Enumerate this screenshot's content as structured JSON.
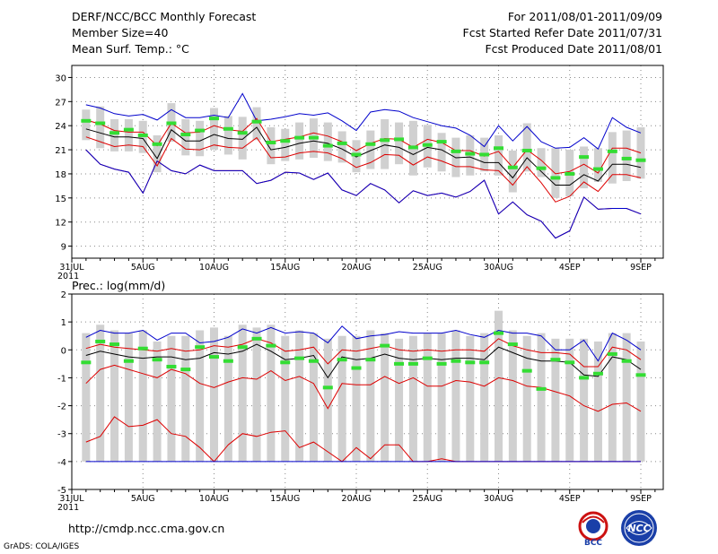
{
  "header": {
    "title": "DERF/NCC/BCC Monthly Forecast",
    "member_size": "Member Size=40",
    "variable": "Mean Surf. Temp.: °C",
    "period": "For 2011/08/01-2011/09/09",
    "start_date": "Fcst Started Refer Date 2011/07/31",
    "produced_date": "Fcst Produced Date 2011/08/01"
  },
  "footer": {
    "url": "http://cmdp.ncc.cma.gov.cn",
    "grads": "GrADS: COLA/IGES",
    "logo_bcc_text": "BCC",
    "logo_ncc_text": "NCC"
  },
  "colors": {
    "box": "#d0d0d0",
    "median": "#33dd33",
    "mean": "#000000",
    "std": "#dd0000",
    "extreme": "#0000cc",
    "grid": "#888888"
  },
  "chart_data": [
    {
      "type": "boxplot-line",
      "title": "Mean Surf. Temp.: °C",
      "x_labels": [
        "31JUL",
        "5AUG",
        "10AUG",
        "15AUG",
        "20AUG",
        "25AUG",
        "30AUG",
        "4SEP",
        "9SEP"
      ],
      "x_label_days": [
        0,
        5,
        10,
        15,
        20,
        25,
        30,
        35,
        40
      ],
      "year_label": "2011",
      "ylim": [
        7.5,
        31.5
      ],
      "yticks": [
        9,
        12,
        15,
        18,
        21,
        24,
        27,
        30
      ],
      "x": [
        1,
        2,
        3,
        4,
        5,
        6,
        7,
        8,
        9,
        10,
        11,
        12,
        13,
        14,
        15,
        16,
        17,
        18,
        19,
        20,
        21,
        22,
        23,
        24,
        25,
        26,
        27,
        28,
        29,
        30,
        31,
        32,
        33,
        34,
        35,
        36,
        37,
        38,
        39,
        40
      ],
      "box_low": [
        22.2,
        21.2,
        20.8,
        20.8,
        20.6,
        18.2,
        22.0,
        20.3,
        20.2,
        21.0,
        20.4,
        19.8,
        22.2,
        19.2,
        19.6,
        19.8,
        20.0,
        19.6,
        19.4,
        18.2,
        18.6,
        18.6,
        19.2,
        17.8,
        18.8,
        18.3,
        17.6,
        17.8,
        18.3,
        17.8,
        15.7,
        18.3,
        17.6,
        15.0,
        15.2,
        16.2,
        17.0,
        16.8,
        17.1,
        17.4
      ],
      "box_high": [
        26.0,
        26.4,
        24.8,
        24.8,
        24.6,
        22.8,
        26.8,
        24.8,
        24.6,
        26.2,
        25.2,
        25.1,
        26.3,
        23.8,
        23.6,
        24.4,
        24.9,
        24.4,
        23.3,
        22.2,
        23.4,
        24.8,
        24.4,
        24.6,
        24.1,
        23.1,
        22.5,
        22.8,
        22.5,
        22.8,
        20.9,
        24.3,
        21.2,
        21.2,
        21.0,
        21.4,
        21.2,
        23.2,
        23.4,
        23.8
      ],
      "median": [
        24.6,
        24.3,
        23.1,
        23.5,
        22.8,
        21.7,
        24.3,
        22.9,
        23.4,
        24.9,
        23.6,
        23.1,
        24.5,
        21.9,
        22.1,
        22.5,
        22.5,
        21.5,
        21.8,
        20.4,
        21.7,
        22.2,
        22.3,
        21.3,
        21.6,
        22.0,
        20.8,
        20.5,
        20.4,
        21.2,
        18.8,
        20.9,
        18.7,
        17.5,
        18.0,
        20.1,
        18.6,
        20.8,
        19.9,
        19.7
      ],
      "mean": [
        23.6,
        23.1,
        22.6,
        22.6,
        22.4,
        19.9,
        23.5,
        22.1,
        22.1,
        22.9,
        22.4,
        22.3,
        23.8,
        21.0,
        21.3,
        21.8,
        22.1,
        21.8,
        21.1,
        20.1,
        20.9,
        21.6,
        21.3,
        20.4,
        21.3,
        21.0,
        20.0,
        20.1,
        19.4,
        19.4,
        17.5,
        20.0,
        18.3,
        16.6,
        16.6,
        17.9,
        17.1,
        19.2,
        19.2,
        18.8
      ],
      "std_upper": [
        24.7,
        24.2,
        23.4,
        23.2,
        23.2,
        21.5,
        24.3,
        23.1,
        23.2,
        24.0,
        23.5,
        23.3,
        24.9,
        22.0,
        22.3,
        22.6,
        23.1,
        22.7,
        22.0,
        20.9,
        21.8,
        22.4,
        22.3,
        21.3,
        22.3,
        21.9,
        20.9,
        20.9,
        20.2,
        20.8,
        18.8,
        21.0,
        19.7,
        18.0,
        18.3,
        19.2,
        18.1,
        21.2,
        21.2,
        20.6
      ],
      "std_lower": [
        22.6,
        22.0,
        21.4,
        21.6,
        21.4,
        19.0,
        22.4,
        21.1,
        21.0,
        21.6,
        21.3,
        21.2,
        22.5,
        20.0,
        20.1,
        20.6,
        20.8,
        20.6,
        19.9,
        18.8,
        19.4,
        20.4,
        20.3,
        19.1,
        20.1,
        19.6,
        18.9,
        18.9,
        18.5,
        18.4,
        16.6,
        18.9,
        16.9,
        14.5,
        15.2,
        17.0,
        15.8,
        17.9,
        17.9,
        17.5
      ],
      "max": [
        26.6,
        26.2,
        25.5,
        25.2,
        25.4,
        24.7,
        26.0,
        25.0,
        25.0,
        25.3,
        25.0,
        28.0,
        24.6,
        24.8,
        25.1,
        25.5,
        25.3,
        25.6,
        24.6,
        23.4,
        25.7,
        26.0,
        25.8,
        25.0,
        24.5,
        24.0,
        23.7,
        22.8,
        21.4,
        24.0,
        22.1,
        23.9,
        22.0,
        21.2,
        21.3,
        22.5,
        21.1,
        25.0,
        23.8,
        23.1
      ],
      "min": [
        21.0,
        19.2,
        18.6,
        18.2,
        15.6,
        19.6,
        18.4,
        18.0,
        19.1,
        18.4,
        18.4,
        18.4,
        16.8,
        17.2,
        18.2,
        18.1,
        17.3,
        18.1,
        16.0,
        15.3,
        16.8,
        16.0,
        14.4,
        15.9,
        15.3,
        15.6,
        15.1,
        15.8,
        17.2,
        13.0,
        14.5,
        12.9,
        12.1,
        10.0,
        10.9,
        15.1,
        13.6,
        13.7,
        13.7,
        13.0
      ]
    },
    {
      "type": "boxplot-line",
      "title": "Prec.: log(mm/d)",
      "x_labels": [
        "31JUL",
        "5AUG",
        "10AUG",
        "15AUG",
        "20AUG",
        "25AUG",
        "30AUG",
        "4SEP",
        "9SEP"
      ],
      "x_label_days": [
        0,
        5,
        10,
        15,
        20,
        25,
        30,
        35,
        40
      ],
      "year_label": "2011",
      "ylim": [
        -5,
        2
      ],
      "yticks": [
        -5,
        -4,
        -3,
        -2,
        -1,
        0,
        1,
        2
      ],
      "x": [
        1,
        2,
        3,
        4,
        5,
        6,
        7,
        8,
        9,
        10,
        11,
        12,
        13,
        14,
        15,
        16,
        17,
        18,
        19,
        20,
        21,
        22,
        23,
        24,
        25,
        26,
        27,
        28,
        29,
        30,
        31,
        32,
        33,
        34,
        35,
        36,
        37,
        38,
        39,
        40
      ],
      "box_low": [
        -4,
        -4,
        -4,
        -4,
        -4,
        -4,
        -4,
        -4,
        -4,
        -4,
        -4,
        -4,
        -4,
        -4,
        -4,
        -4,
        -4,
        -4,
        -4,
        -4,
        -4,
        -4,
        -4,
        -4,
        -4,
        -4,
        -4,
        -4,
        -4,
        -4,
        -4,
        -4,
        -4,
        -4,
        -4,
        -4,
        -4,
        -4,
        -4,
        -4
      ],
      "box_high": [
        0.6,
        0.9,
        0.7,
        0.6,
        0.7,
        0.3,
        0.5,
        0.5,
        0.7,
        0.8,
        0.5,
        0.9,
        0.8,
        0.9,
        0.5,
        0.7,
        0.6,
        0.4,
        0.5,
        0.5,
        0.7,
        0.6,
        0.4,
        0.5,
        0.6,
        0.6,
        0.7,
        0.5,
        0.6,
        1.4,
        0.7,
        0.5,
        0.6,
        0.4,
        0.4,
        0.4,
        0.3,
        0.6,
        0.6,
        0.3
      ],
      "median": [
        -0.45,
        0.3,
        0.2,
        -0.4,
        0.05,
        -0.35,
        -0.6,
        -0.7,
        0.1,
        -0.25,
        -0.4,
        0.1,
        0.4,
        0.15,
        -0.45,
        -0.3,
        -0.4,
        -1.35,
        -0.35,
        -0.65,
        -0.35,
        0.15,
        -0.5,
        -0.5,
        -0.3,
        -0.5,
        -0.4,
        -0.45,
        -0.45,
        0.6,
        0.2,
        -0.75,
        -1.4,
        -0.35,
        -0.45,
        -1.0,
        -0.85,
        -0.15,
        -0.4,
        -0.9
      ],
      "mean": [
        -0.2,
        -0.05,
        -0.15,
        -0.25,
        -0.3,
        -0.25,
        -0.25,
        -0.35,
        -0.3,
        -0.1,
        -0.15,
        -0.05,
        0.2,
        -0.05,
        -0.35,
        -0.3,
        -0.2,
        -1.0,
        -0.25,
        -0.35,
        -0.3,
        -0.15,
        -0.3,
        -0.35,
        -0.3,
        -0.35,
        -0.3,
        -0.3,
        -0.35,
        0.1,
        -0.1,
        -0.3,
        -0.4,
        -0.4,
        -0.45,
        -0.9,
        -0.95,
        -0.25,
        -0.35,
        -0.7
      ],
      "std_upper": [
        0.05,
        0.2,
        0.1,
        0.05,
        0.0,
        -0.05,
        0.05,
        -0.05,
        0.0,
        0.15,
        0.1,
        0.2,
        0.4,
        0.25,
        -0.05,
        0.0,
        0.1,
        -0.5,
        0.0,
        -0.05,
        0.05,
        0.15,
        0.0,
        -0.05,
        0.0,
        -0.05,
        0.0,
        0.0,
        -0.05,
        0.4,
        0.15,
        0.0,
        -0.1,
        -0.1,
        -0.15,
        -0.6,
        -0.6,
        0.1,
        0.0,
        -0.35
      ],
      "std_lower": [
        -1.2,
        -0.7,
        -0.55,
        -0.7,
        -0.85,
        -1.0,
        -0.7,
        -0.85,
        -1.2,
        -1.35,
        -1.15,
        -1.0,
        -1.05,
        -0.75,
        -1.1,
        -0.95,
        -1.2,
        -2.1,
        -1.2,
        -1.25,
        -1.25,
        -0.95,
        -1.2,
        -1.0,
        -1.3,
        -1.3,
        -1.1,
        -1.15,
        -1.3,
        -1.0,
        -1.1,
        -1.3,
        -1.35,
        -1.5,
        -1.65,
        -2.0,
        -2.2,
        -1.95,
        -1.9,
        -2.2
      ],
      "max": [
        0.45,
        0.7,
        0.6,
        0.6,
        0.7,
        0.35,
        0.6,
        0.6,
        0.25,
        0.3,
        0.45,
        0.75,
        0.6,
        0.8,
        0.6,
        0.65,
        0.6,
        0.25,
        0.85,
        0.4,
        0.5,
        0.55,
        0.65,
        0.6,
        0.6,
        0.6,
        0.7,
        0.55,
        0.45,
        0.7,
        0.6,
        0.6,
        0.5,
        0.0,
        0.0,
        0.35,
        -0.4,
        0.6,
        0.35,
        0.0
      ],
      "min": [
        -4,
        -4,
        -4,
        -4,
        -4,
        -4,
        -4,
        -4,
        -4,
        -4,
        -4,
        -4,
        -4,
        -4,
        -4,
        -4,
        -4,
        -4,
        -4,
        -4,
        -4,
        -4,
        -4,
        -4,
        -4,
        -4,
        -4,
        -4,
        -4,
        -4,
        -4,
        -4,
        -4,
        -4,
        -4,
        -4,
        -4,
        -4,
        -4,
        -4
      ],
      "min_curve": [
        -3.3,
        -3.1,
        -2.4,
        -2.75,
        -2.7,
        -2.5,
        -3.0,
        -3.1,
        -3.5,
        -4.0,
        -3.4,
        -3.0,
        -3.1,
        -2.95,
        -2.9,
        -3.5,
        -3.3,
        -3.65,
        -4.0,
        -3.5,
        -3.9,
        -3.4,
        -3.4,
        -4.0,
        -4.0,
        -3.9,
        -4.0,
        -4.0,
        -4.0,
        -4.0,
        -4.0,
        -4.0,
        -4.0,
        -4.0,
        -4.0,
        -4.0,
        -4.0,
        -4.0,
        -4.0,
        -4.0
      ]
    }
  ]
}
